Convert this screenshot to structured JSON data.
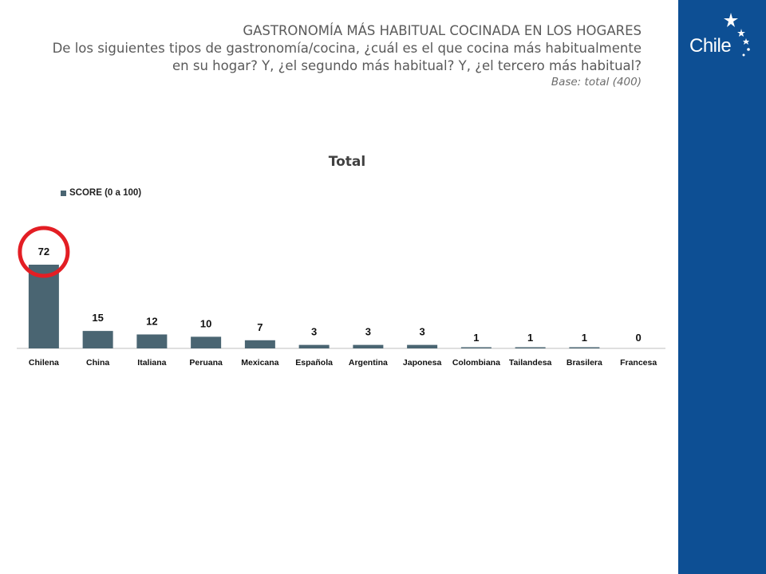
{
  "header": {
    "title": "GASTRONOMÍA MÁS HABITUAL COCINADA EN LOS HOGARES",
    "question": "De los siguientes tipos de gastronomía/cocina, ¿cuál es el que cocina más habitualmente en su hogar? Y, ¿el segundo más habitual? Y, ¿el tercero más habitual?",
    "base": "Base: total (400)"
  },
  "brand": {
    "logo_text": "Chile",
    "sidebar_color": "#0d4f94"
  },
  "chart_data": {
    "type": "bar",
    "title": "Total",
    "categories": [
      "Chilena",
      "China",
      "Italiana",
      "Peruana",
      "Mexicana",
      "Española",
      "Argentina",
      "Japonesa",
      "Colombiana",
      "Tailandesa",
      "Brasilera",
      "Francesa"
    ],
    "series": [
      {
        "name": "SCORE (0 a 100)",
        "values": [
          72,
          15,
          12,
          10,
          7,
          3,
          3,
          3,
          1,
          1,
          1,
          0
        ],
        "color": "#4a6572"
      }
    ],
    "legend_position": "top-left",
    "grid": false,
    "highlight": {
      "category": "Chilena",
      "shape": "circle",
      "color": "#e31e24"
    }
  }
}
